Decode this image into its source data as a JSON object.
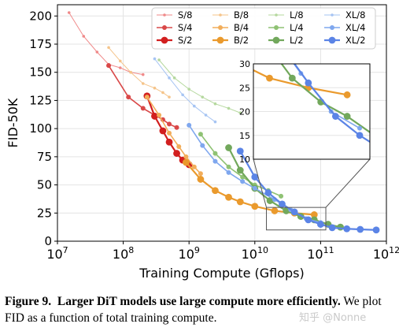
{
  "chart_data": {
    "type": "line",
    "xlabel": "Training Compute (Gflops)",
    "ylabel": "FID-50K",
    "xscale": "log",
    "xlim": [
      10000000.0,
      1000000000000.0
    ],
    "ylim": [
      0,
      210
    ],
    "x_ticks": [
      {
        "base": "10",
        "exp": "7"
      },
      {
        "base": "10",
        "exp": "8"
      },
      {
        "base": "10",
        "exp": "9"
      },
      {
        "base": "10",
        "exp": "10"
      },
      {
        "base": "10",
        "exp": "11"
      },
      {
        "base": "10",
        "exp": "12"
      }
    ],
    "y_ticks": [
      "0",
      "25",
      "50",
      "75",
      "100",
      "125",
      "150",
      "175",
      "200"
    ],
    "legend_position": "top",
    "grid": true,
    "series": [
      {
        "name": "S/8",
        "color": "#f08a8a",
        "size": 1,
        "x": [
          15000000.0,
          25000000.0,
          40000000.0,
          60000000.0,
          90000000.0,
          130000000.0,
          200000000.0
        ],
        "y": [
          203,
          182,
          168,
          157,
          154,
          150,
          148
        ]
      },
      {
        "name": "S/4",
        "color": "#d94848",
        "size": 2,
        "x": [
          60000000.0,
          120000000.0,
          200000000.0,
          300000000.0,
          400000000.0,
          500000000.0,
          650000000.0
        ],
        "y": [
          156,
          128,
          118,
          112,
          108,
          104,
          101
        ]
      },
      {
        "name": "S/2",
        "color": "#d21f1f",
        "size": 3,
        "x": [
          230000000.0,
          300000000.0,
          400000000.0,
          500000000.0,
          650000000.0,
          800000000.0,
          1000000000.0
        ],
        "y": [
          129,
          111,
          98,
          88,
          78,
          72,
          68
        ]
      },
      {
        "name": "B/8",
        "color": "#f5c48a",
        "size": 1,
        "x": [
          60000000.0,
          90000000.0,
          130000000.0,
          200000000.0,
          300000000.0,
          400000000.0,
          500000000.0
        ],
        "y": [
          172,
          160,
          150,
          140,
          136,
          132,
          128
        ]
      },
      {
        "name": "B/4",
        "color": "#f2ad5a",
        "size": 2,
        "x": [
          230000000.0,
          350000000.0,
          500000000.0,
          700000000.0,
          900000000.0,
          1200000000.0,
          1500000000.0
        ],
        "y": [
          128,
          112,
          96,
          84,
          75,
          66,
          60
        ]
      },
      {
        "name": "B/2",
        "color": "#ea9a2d",
        "size": 3,
        "x": [
          900000000.0,
          1500000000.0,
          2500000000.0,
          4000000000.0,
          6000000000.0,
          10000000000.0,
          20000000000.0,
          40000000000.0,
          80000000000.0
        ],
        "y": [
          70,
          55,
          45,
          39,
          35,
          31,
          27,
          25,
          23.5
        ]
      },
      {
        "name": "L/8",
        "color": "#b5d89e",
        "size": 1,
        "x": [
          350000000.0,
          600000000.0,
          1000000000.0,
          1600000000.0,
          2500000000.0,
          4000000000.0,
          6000000000.0
        ],
        "y": [
          161,
          145,
          135,
          128,
          122,
          118,
          114
        ]
      },
      {
        "name": "L/4",
        "color": "#8fc274",
        "size": 2,
        "x": [
          1500000000.0,
          2500000000.0,
          4000000000.0,
          6500000000.0,
          10000000000.0,
          16000000000.0,
          25000000000.0
        ],
        "y": [
          95,
          78,
          66,
          57,
          50,
          45,
          40
        ]
      },
      {
        "name": "L/2",
        "color": "#72a85c",
        "size": 3,
        "x": [
          4000000000.0,
          6000000000.0,
          10000000000.0,
          17000000000.0,
          30000000000.0,
          50000000000.0,
          80000000000.0,
          130000000000.0,
          200000000000.0
        ],
        "y": [
          83,
          63,
          47,
          36,
          27,
          22,
          19,
          15,
          12.5
        ]
      },
      {
        "name": "XL/8",
        "color": "#a6c4f3",
        "size": 1,
        "x": [
          300000000.0,
          500000000.0,
          800000000.0,
          1200000000.0,
          1800000000.0,
          2500000000.0
        ],
        "y": [
          162,
          145,
          130,
          120,
          112,
          106
        ]
      },
      {
        "name": "XL/4",
        "color": "#7fa7ee",
        "size": 2,
        "x": [
          1000000000.0,
          1600000000.0,
          2500000000.0,
          4000000000.0,
          6500000000.0,
          10000000000.0,
          20000000000.0,
          35000000000.0,
          60000000000.0,
          100000000000.0
        ],
        "y": [
          103,
          85,
          71,
          61,
          53,
          47,
          37,
          28,
          20,
          16.5
        ]
      },
      {
        "name": "XL/2",
        "color": "#5b84e6",
        "size": 3,
        "x": [
          6000000000.0,
          10000000000.0,
          16000000000.0,
          26000000000.0,
          40000000000.0,
          65000000000.0,
          100000000000.0,
          150000000000.0,
          250000000000.0,
          400000000000.0,
          700000000000.0
        ],
        "y": [
          80,
          57,
          43,
          33,
          26,
          19,
          15,
          12,
          11,
          10.5,
          10
        ]
      }
    ],
    "inset": {
      "xlim": [
        15000000000.0,
        120000000000.0
      ],
      "ylim": [
        10,
        30
      ],
      "y_ticks": [
        "10",
        "15",
        "20",
        "25",
        "30"
      ]
    }
  },
  "caption": {
    "label": "Figure 9.",
    "title": "Larger DiT models use large compute more efficiently.",
    "body": "We plot FID as a function of total training compute."
  },
  "watermark": "知乎 @Nonne"
}
